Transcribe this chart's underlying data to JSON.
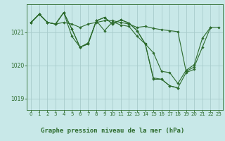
{
  "background_color": "#c8e8e8",
  "plot_bg_color": "#c8e8e8",
  "grid_color": "#a8cccc",
  "line_color": "#2d6b2d",
  "title": "Graphe pression niveau de la mer (hPa)",
  "title_fontsize": 6.5,
  "title_bg": "#a8c8a8",
  "ylim": [
    1018.65,
    1021.85
  ],
  "xlim": [
    -0.5,
    23.5
  ],
  "yticks": [
    1019,
    1020,
    1021
  ],
  "xtick_fontsize": 5.0,
  "ytick_fontsize": 5.5,
  "series": [
    {
      "x": [
        0,
        1,
        2,
        3,
        4,
        5,
        6,
        7,
        8,
        9,
        10,
        11,
        12,
        13,
        14,
        15,
        16,
        17,
        18,
        19,
        20,
        21,
        22,
        23
      ],
      "y": [
        1021.3,
        1021.55,
        1021.3,
        1021.25,
        1021.3,
        1021.25,
        1021.15,
        1021.25,
        1021.3,
        1021.35,
        1021.35,
        1021.3,
        1021.25,
        1021.15,
        1021.18,
        1021.12,
        1021.08,
        1021.05,
        1021.02,
        1019.82,
        1019.95,
        1020.55,
        1021.15,
        1021.15
      ]
    },
    {
      "x": [
        0,
        1,
        2,
        3,
        4,
        5,
        6,
        7,
        8,
        9,
        10,
        11,
        12,
        13,
        14,
        15,
        16,
        17,
        18,
        19,
        20,
        21,
        22
      ],
      "y": [
        1021.3,
        1021.55,
        1021.3,
        1021.25,
        1021.6,
        1021.1,
        1020.55,
        1020.65,
        1021.35,
        1021.45,
        1021.25,
        1021.38,
        1021.28,
        1021.05,
        1020.65,
        1020.38,
        1019.82,
        1019.78,
        1019.45,
        1019.85,
        1020.02,
        1020.82,
        1021.15
      ]
    },
    {
      "x": [
        0,
        1,
        2,
        3,
        4,
        5,
        6,
        7,
        8,
        9,
        10,
        11,
        12,
        13,
        14,
        15,
        16,
        17,
        18,
        19,
        20
      ],
      "y": [
        1021.3,
        1021.55,
        1021.3,
        1021.25,
        1021.6,
        1021.1,
        1020.55,
        1020.65,
        1021.35,
        1021.45,
        1021.25,
        1021.38,
        1021.28,
        1021.05,
        1020.65,
        1019.62,
        1019.58,
        1019.38,
        1019.32,
        1019.78,
        1019.88
      ]
    },
    {
      "x": [
        0,
        1,
        2,
        3,
        4,
        5,
        6,
        7,
        8,
        9,
        10,
        11,
        12,
        13,
        14,
        15,
        16,
        17,
        18
      ],
      "y": [
        1021.3,
        1021.55,
        1021.3,
        1021.25,
        1021.6,
        1020.88,
        1020.55,
        1020.68,
        1021.35,
        1021.05,
        1021.32,
        1021.22,
        1021.18,
        1020.88,
        1020.65,
        1019.58,
        1019.58,
        1019.38,
        1019.32
      ]
    }
  ]
}
